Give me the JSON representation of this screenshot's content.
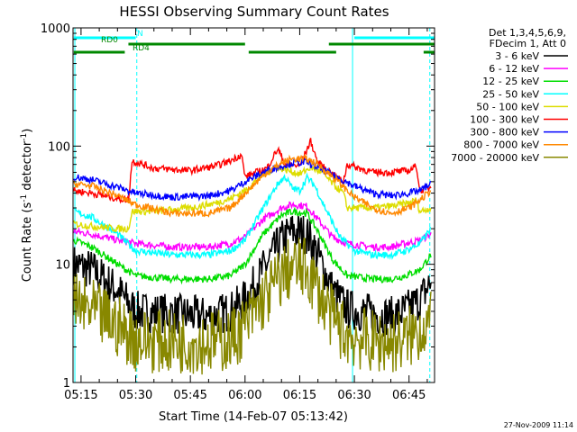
{
  "chart_data": {
    "type": "line",
    "title": "HESSI Observing Summary Count Rates",
    "ylabel": "Count Rate (s",
    "ylabel_sup": "-1",
    "ylabel_rest": " detector",
    "ylabel_sup2": "-1",
    "ylabel_end": ")",
    "xlabel": "Start Time (14-Feb-07 05:13:42)",
    "footer": "27-Nov-2009 11:14",
    "yscale": "log",
    "ylim": [
      1,
      1000
    ],
    "y_ticks": [
      "1",
      "10",
      "100",
      "1000"
    ],
    "xlim_minutes": [
      312.8,
      412.0
    ],
    "x_ticks": [
      {
        "label": "05:15",
        "min": 315
      },
      {
        "label": "05:30",
        "min": 330
      },
      {
        "label": "05:45",
        "min": 345
      },
      {
        "label": "06:00",
        "min": 360
      },
      {
        "label": "06:15",
        "min": 375
      },
      {
        "label": "06:30",
        "min": 390
      },
      {
        "label": "06:45",
        "min": 405
      }
    ],
    "legend_header": [
      "Det 1,3,4,5,6,9,",
      "FDecim 1, Att 0"
    ],
    "legend_position": "top-right (outside plot)",
    "series": [
      {
        "name": "3 - 6 keV",
        "color": "#000000",
        "points": [
          [
            313,
            10
          ],
          [
            318,
            9
          ],
          [
            325,
            6
          ],
          [
            330,
            4
          ],
          [
            340,
            3.8
          ],
          [
            350,
            3.6
          ],
          [
            356,
            4
          ],
          [
            360,
            5
          ],
          [
            365,
            9
          ],
          [
            370,
            16
          ],
          [
            373,
            19
          ],
          [
            377,
            18
          ],
          [
            380,
            12
          ],
          [
            384,
            6
          ],
          [
            388,
            4.2
          ],
          [
            395,
            3.8
          ],
          [
            400,
            3.6
          ],
          [
            404,
            4
          ],
          [
            408,
            5
          ],
          [
            411,
            7
          ]
        ]
      },
      {
        "name": "6 - 12 keV",
        "color": "#ff00ff",
        "points": [
          [
            313,
            19
          ],
          [
            318,
            18
          ],
          [
            325,
            16
          ],
          [
            330,
            15
          ],
          [
            340,
            14
          ],
          [
            350,
            14
          ],
          [
            356,
            15
          ],
          [
            360,
            17
          ],
          [
            365,
            24
          ],
          [
            370,
            30
          ],
          [
            373,
            32
          ],
          [
            377,
            31
          ],
          [
            380,
            24
          ],
          [
            384,
            17
          ],
          [
            388,
            15
          ],
          [
            395,
            14
          ],
          [
            400,
            14
          ],
          [
            404,
            15
          ],
          [
            408,
            16
          ],
          [
            411,
            18
          ]
        ]
      },
      {
        "name": "12 - 25 keV",
        "color": "#00dd00",
        "points": [
          [
            313,
            16
          ],
          [
            318,
            14
          ],
          [
            325,
            10
          ],
          [
            330,
            8
          ],
          [
            340,
            7.5
          ],
          [
            350,
            7.5
          ],
          [
            356,
            8
          ],
          [
            360,
            10
          ],
          [
            365,
            18
          ],
          [
            370,
            26
          ],
          [
            373,
            28
          ],
          [
            377,
            27
          ],
          [
            380,
            19
          ],
          [
            384,
            11
          ],
          [
            388,
            8
          ],
          [
            395,
            7.5
          ],
          [
            400,
            7.5
          ],
          [
            404,
            8
          ],
          [
            408,
            9
          ],
          [
            411,
            12
          ]
        ]
      },
      {
        "name": "25 - 50 keV",
        "color": "#00ffff",
        "points": [
          [
            313,
            28
          ],
          [
            318,
            25
          ],
          [
            325,
            18
          ],
          [
            330,
            13
          ],
          [
            340,
            12
          ],
          [
            350,
            12
          ],
          [
            356,
            13
          ],
          [
            360,
            16
          ],
          [
            365,
            30
          ],
          [
            369,
            48
          ],
          [
            371,
            55
          ],
          [
            373,
            44
          ],
          [
            375,
            42
          ],
          [
            377,
            54
          ],
          [
            379,
            47
          ],
          [
            382,
            30
          ],
          [
            386,
            17
          ],
          [
            390,
            13
          ],
          [
            395,
            12
          ],
          [
            400,
            12
          ],
          [
            404,
            13
          ],
          [
            408,
            15
          ],
          [
            411,
            20
          ]
        ]
      },
      {
        "name": "50 - 100 keV",
        "color": "#dddd00",
        "points": [
          [
            313,
            22
          ],
          [
            318,
            21
          ],
          [
            325,
            20
          ],
          [
            328,
            20
          ],
          [
            329,
            28
          ],
          [
            335,
            28
          ],
          [
            345,
            30
          ],
          [
            352,
            33
          ],
          [
            356,
            36
          ],
          [
            360,
            42
          ],
          [
            365,
            58
          ],
          [
            369,
            66
          ],
          [
            372,
            62
          ],
          [
            375,
            58
          ],
          [
            378,
            66
          ],
          [
            381,
            60
          ],
          [
            385,
            45
          ],
          [
            387,
            40
          ],
          [
            388,
            30
          ],
          [
            395,
            30
          ],
          [
            400,
            31
          ],
          [
            405,
            33
          ],
          [
            407,
            35
          ],
          [
            408,
            28
          ],
          [
            411,
            30
          ]
        ]
      },
      {
        "name": "100 - 300 keV",
        "color": "#ff0000",
        "points": [
          [
            313,
            42
          ],
          [
            318,
            40
          ],
          [
            325,
            36
          ],
          [
            328,
            35
          ],
          [
            329,
            75
          ],
          [
            335,
            65
          ],
          [
            345,
            62
          ],
          [
            352,
            68
          ],
          [
            356,
            75
          ],
          [
            359,
            85
          ],
          [
            360,
            55
          ],
          [
            366,
            65
          ],
          [
            369,
            95
          ],
          [
            371,
            70
          ],
          [
            375,
            68
          ],
          [
            378,
            110
          ],
          [
            380,
            72
          ],
          [
            385,
            55
          ],
          [
            387,
            50
          ],
          [
            388,
            70
          ],
          [
            395,
            60
          ],
          [
            400,
            60
          ],
          [
            405,
            62
          ],
          [
            407,
            68
          ],
          [
            408,
            42
          ],
          [
            411,
            45
          ]
        ]
      },
      {
        "name": "300 - 800 keV",
        "color": "#0000ff",
        "points": [
          [
            313,
            55
          ],
          [
            318,
            52
          ],
          [
            325,
            45
          ],
          [
            330,
            40
          ],
          [
            340,
            37
          ],
          [
            350,
            38
          ],
          [
            356,
            42
          ],
          [
            360,
            50
          ],
          [
            366,
            62
          ],
          [
            370,
            68
          ],
          [
            373,
            72
          ],
          [
            377,
            73
          ],
          [
            380,
            66
          ],
          [
            385,
            55
          ],
          [
            390,
            46
          ],
          [
            395,
            40
          ],
          [
            400,
            38
          ],
          [
            405,
            40
          ],
          [
            408,
            42
          ],
          [
            411,
            48
          ]
        ]
      },
      {
        "name": "800 - 7000 keV",
        "color": "#ff8800",
        "points": [
          [
            313,
            48
          ],
          [
            318,
            46
          ],
          [
            325,
            38
          ],
          [
            330,
            32
          ],
          [
            340,
            27
          ],
          [
            350,
            27
          ],
          [
            356,
            30
          ],
          [
            360,
            40
          ],
          [
            366,
            60
          ],
          [
            370,
            72
          ],
          [
            373,
            78
          ],
          [
            377,
            78
          ],
          [
            380,
            70
          ],
          [
            385,
            52
          ],
          [
            390,
            37
          ],
          [
            395,
            30
          ],
          [
            400,
            27
          ],
          [
            405,
            30
          ],
          [
            408,
            35
          ],
          [
            411,
            42
          ]
        ]
      },
      {
        "name": "7000 - 20000 keV",
        "color": "#888800",
        "points": [
          [
            313,
            4.5
          ],
          [
            318,
            4
          ],
          [
            325,
            3
          ],
          [
            330,
            2.3
          ],
          [
            340,
            2.2
          ],
          [
            350,
            2.2
          ],
          [
            356,
            2.3
          ],
          [
            360,
            3
          ],
          [
            365,
            5
          ],
          [
            370,
            8
          ],
          [
            373,
            9.5
          ],
          [
            377,
            9
          ],
          [
            380,
            6
          ],
          [
            384,
            3.5
          ],
          [
            388,
            2.5
          ],
          [
            395,
            2.2
          ],
          [
            400,
            2.2
          ],
          [
            404,
            2.3
          ],
          [
            408,
            2.8
          ],
          [
            411,
            3.5
          ]
        ]
      }
    ],
    "flag_bars": [
      {
        "label": "N",
        "color": "#00ffff",
        "segments": [
          [
            313,
            330
          ],
          [
            390,
            412
          ]
        ]
      },
      {
        "label": "RD0",
        "color": "#008800",
        "segments": [
          [
            328,
            360
          ],
          [
            383,
            412
          ]
        ]
      },
      {
        "label": "RD4",
        "color": "#008800",
        "segments": [
          [
            313,
            327
          ],
          [
            361,
            385
          ],
          [
            409,
            412
          ]
        ]
      }
    ],
    "vlines": [
      {
        "min": 313.3,
        "style": "solid",
        "color": "#00ffff"
      },
      {
        "min": 330.3,
        "style": "dashed",
        "color": "#00ffff"
      },
      {
        "min": 389.5,
        "style": "solid",
        "color": "#00ffff"
      },
      {
        "min": 410.7,
        "style": "dashed",
        "color": "#00ffff"
      }
    ]
  }
}
